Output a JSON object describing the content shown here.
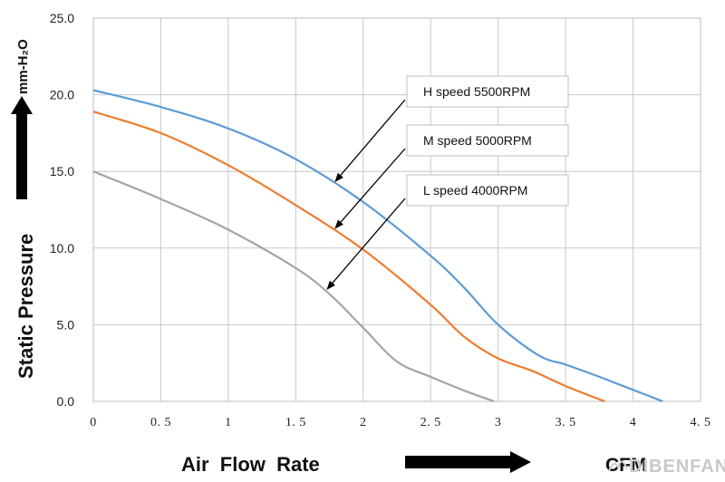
{
  "chart_data": {
    "type": "line",
    "title": "",
    "xlabel": "Air  Flow  Rate",
    "ylabel": "Static   Pressure",
    "y_unit": "mm-H₂O",
    "x_unit": "CFM",
    "xlim": [
      0,
      4.5
    ],
    "ylim": [
      0,
      25
    ],
    "x_ticks": [
      "0",
      "0.5",
      "1",
      "1.5",
      "2",
      "2.5",
      "3",
      "3.5",
      "4",
      "4.5"
    ],
    "y_ticks": [
      "0.0",
      "5.0",
      "10.0",
      "15.0",
      "20.0",
      "25.0"
    ],
    "grid": true,
    "series": [
      {
        "name": "H  speed  5500RPM",
        "color": "#5b9bd5",
        "points": [
          [
            0,
            20.3
          ],
          [
            0.5,
            19.2
          ],
          [
            1,
            17.8
          ],
          [
            1.5,
            15.8
          ],
          [
            2,
            13.0
          ],
          [
            2.5,
            9.5
          ],
          [
            2.75,
            7.4
          ],
          [
            3,
            5.0
          ],
          [
            3.3,
            3.0
          ],
          [
            3.5,
            2.4
          ],
          [
            3.75,
            1.6
          ],
          [
            4,
            0.75
          ],
          [
            4.22,
            0.0
          ]
        ]
      },
      {
        "name": "M  speed  5000RPM",
        "color": "#ed7d31",
        "points": [
          [
            0,
            18.9
          ],
          [
            0.5,
            17.5
          ],
          [
            1,
            15.4
          ],
          [
            1.5,
            12.8
          ],
          [
            2,
            9.9
          ],
          [
            2.5,
            6.3
          ],
          [
            2.75,
            4.2
          ],
          [
            3,
            2.8
          ],
          [
            3.25,
            2.0
          ],
          [
            3.5,
            1.0
          ],
          [
            3.79,
            0.0
          ]
        ]
      },
      {
        "name": "L  speed  4000RPM",
        "color": "#a5a5a5",
        "points": [
          [
            0,
            15.0
          ],
          [
            0.5,
            13.2
          ],
          [
            1,
            11.2
          ],
          [
            1.5,
            8.7
          ],
          [
            1.75,
            7.0
          ],
          [
            2,
            4.8
          ],
          [
            2.25,
            2.6
          ],
          [
            2.5,
            1.6
          ],
          [
            2.75,
            0.7
          ],
          [
            2.97,
            0.0
          ]
        ]
      }
    ],
    "callouts": [
      {
        "label": "H  speed  5500RPM",
        "series": 0
      },
      {
        "label": "M  speed  5000RPM",
        "series": 1
      },
      {
        "label": "L  speed  4000RPM",
        "series": 2
      }
    ]
  },
  "watermark": "DIBENFAN"
}
